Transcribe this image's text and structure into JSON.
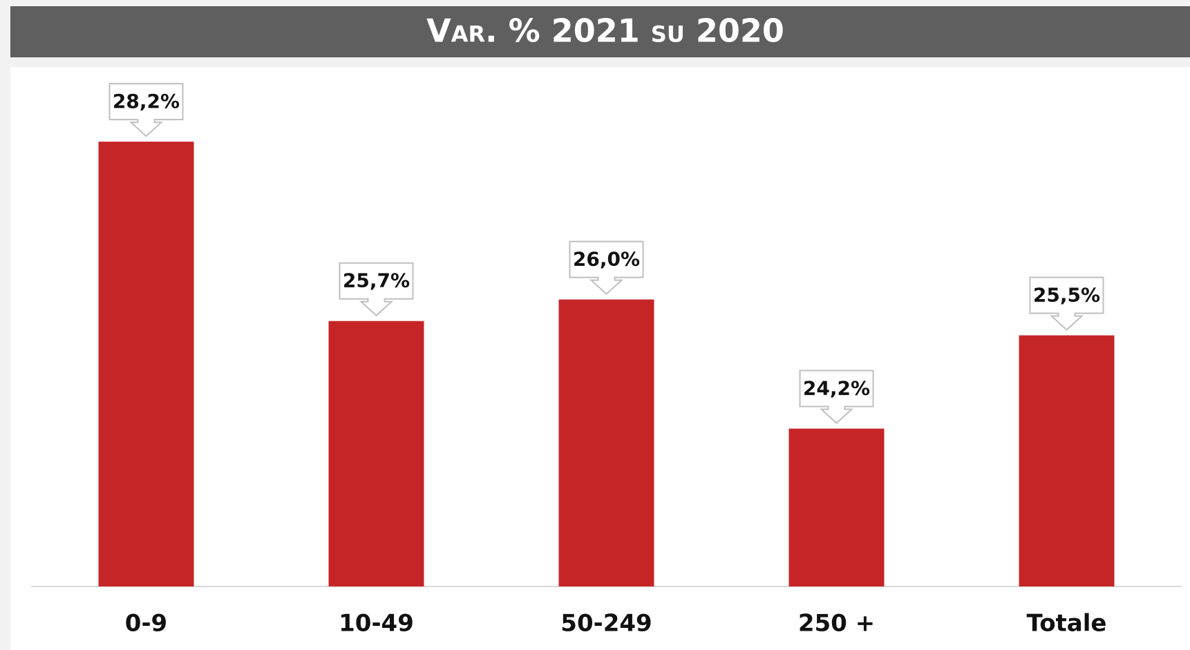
{
  "chart_data": {
    "type": "bar",
    "title": "Var. % 2021 su 2020",
    "categories": [
      "0-9",
      "10-49",
      "50-249",
      "250 +",
      "Totale"
    ],
    "values": [
      28.2,
      25.7,
      26.0,
      24.2,
      25.5
    ],
    "value_labels": [
      "28,2%",
      "25,7%",
      "26,0%",
      "24,2%",
      "25,5%"
    ],
    "color": "#c62527",
    "ylim": [
      22,
      29
    ]
  }
}
